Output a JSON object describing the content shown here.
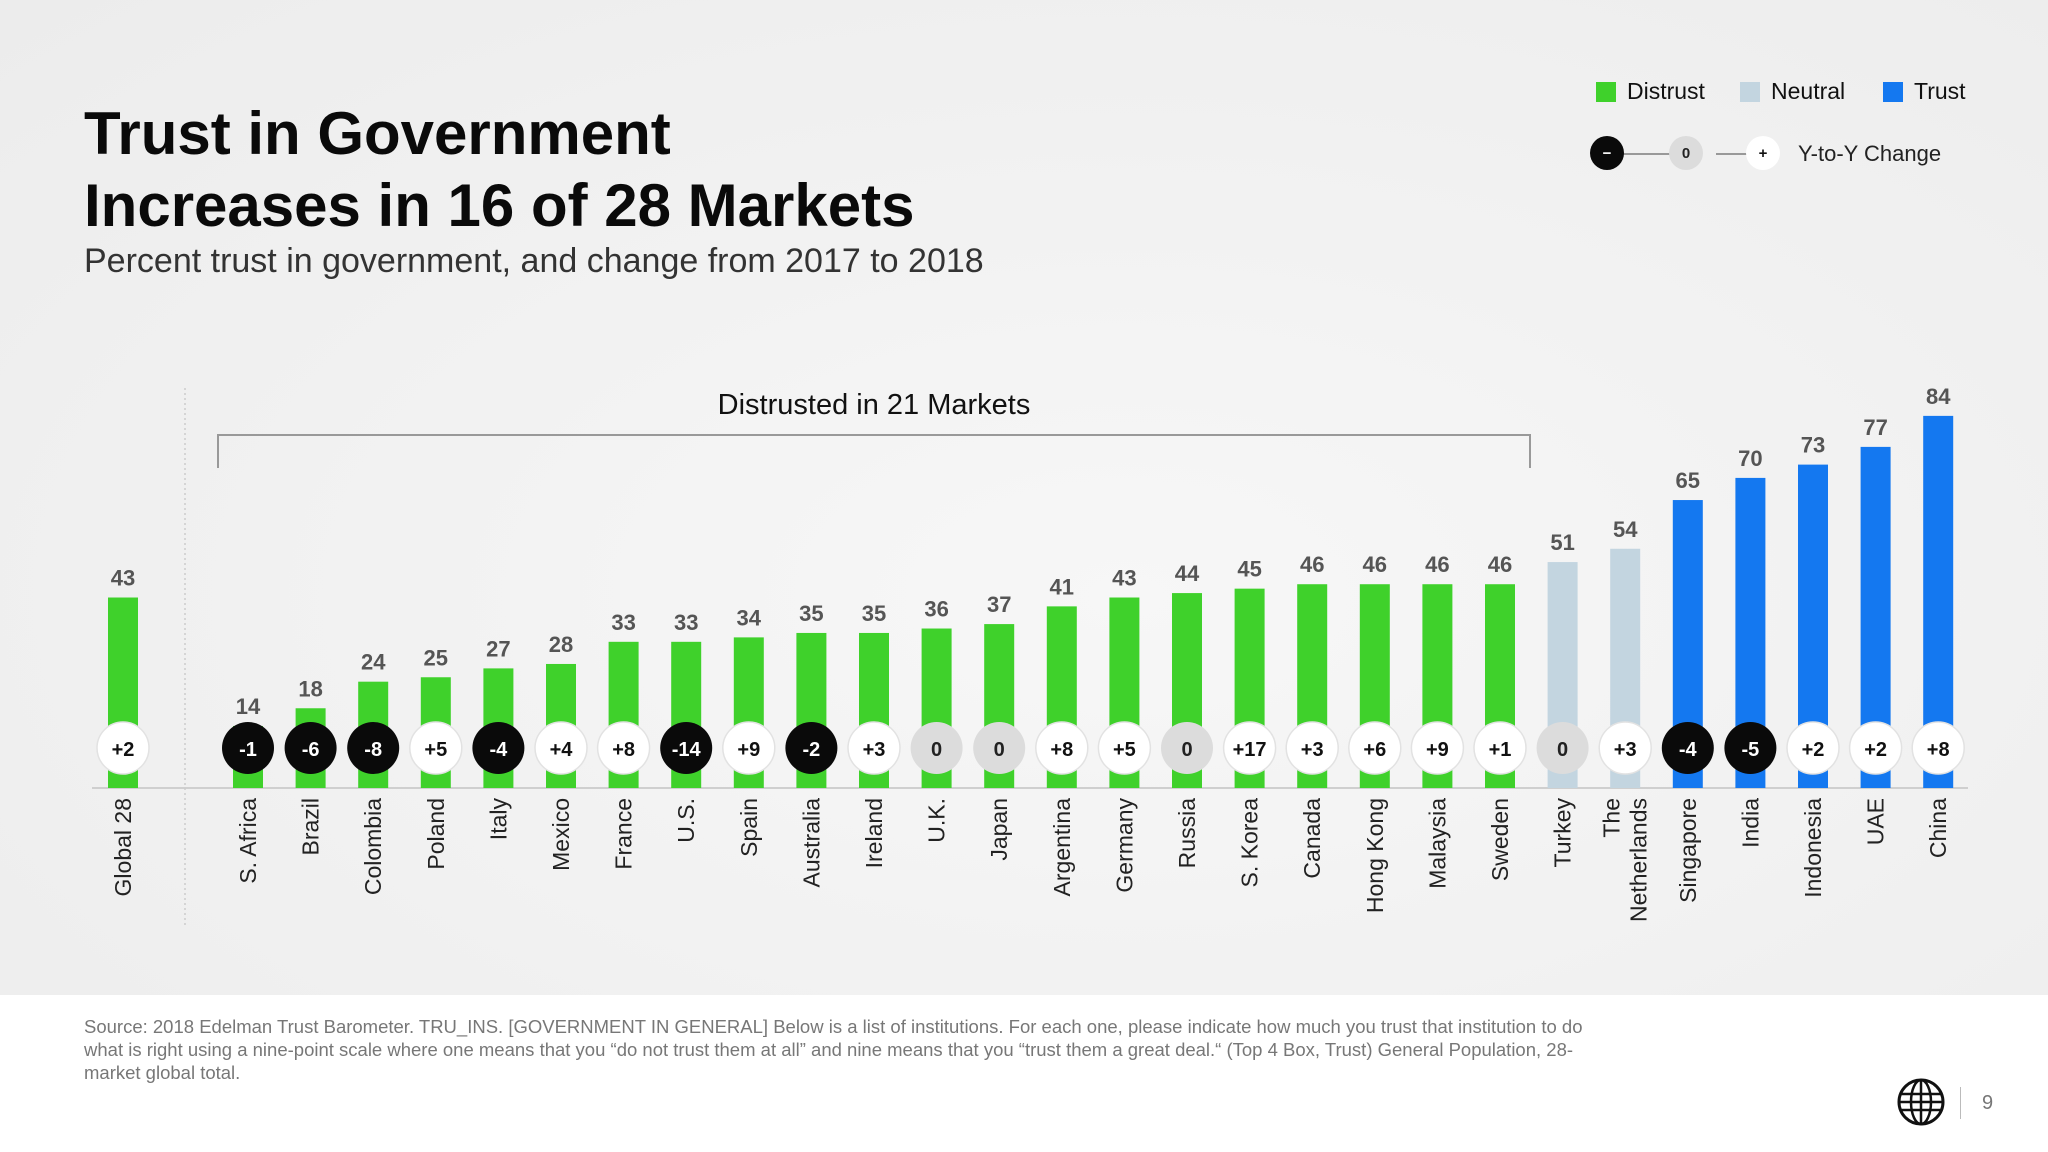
{
  "title_lines": [
    "Trust in Government",
    "Increases in 16 of 28 Markets"
  ],
  "subtitle": "Percent trust in government, and change from 2017 to 2018",
  "legend": {
    "items": [
      {
        "label": "Distrust",
        "color": "#3fd12b"
      },
      {
        "label": "Neutral",
        "color": "#c3d5e0"
      },
      {
        "label": "Trust",
        "color": "#1478f0"
      }
    ],
    "yoy": {
      "minus": "−",
      "zero": "0",
      "plus": "+",
      "label": "Y-to-Y Change"
    }
  },
  "chart_data": {
    "type": "bar",
    "title": "Trust in Government Increases in 16 of 28 Markets",
    "subtitle": "Percent trust in government, and change from 2017 to 2018",
    "ylim": [
      0,
      100
    ],
    "categories": [
      "Global 28",
      "S. Africa",
      "Brazil",
      "Colombia",
      "Poland",
      "Italy",
      "Mexico",
      "France",
      "U.S.",
      "Spain",
      "Australia",
      "Ireland",
      "U.K.",
      "Japan",
      "Argentina",
      "Germany",
      "Russia",
      "S. Korea",
      "Canada",
      "Hong Kong",
      "Malaysia",
      "Sweden",
      "Turkey",
      "The Netherlands",
      "Singapore",
      "India",
      "Indonesia",
      "UAE",
      "China"
    ],
    "values": [
      43,
      14,
      18,
      24,
      25,
      27,
      28,
      33,
      33,
      34,
      35,
      35,
      36,
      37,
      41,
      43,
      44,
      45,
      46,
      46,
      46,
      46,
      51,
      54,
      65,
      70,
      73,
      77,
      84
    ],
    "changes": [
      "+2",
      "-1",
      "-6",
      "-8",
      "+5",
      "-4",
      "+4",
      "+8",
      "-14",
      "+9",
      "-2",
      "+3",
      "0",
      "0",
      "+8",
      "+5",
      "0",
      "+17",
      "+3",
      "+6",
      "+9",
      "+1",
      "0",
      "+3",
      "-4",
      "-5",
      "+2",
      "+2",
      "+8"
    ],
    "levels": [
      "Distrust",
      "Distrust",
      "Distrust",
      "Distrust",
      "Distrust",
      "Distrust",
      "Distrust",
      "Distrust",
      "Distrust",
      "Distrust",
      "Distrust",
      "Distrust",
      "Distrust",
      "Distrust",
      "Distrust",
      "Distrust",
      "Distrust",
      "Distrust",
      "Distrust",
      "Distrust",
      "Distrust",
      "Distrust",
      "Neutral",
      "Neutral",
      "Trust",
      "Trust",
      "Trust",
      "Trust",
      "Trust"
    ],
    "colors": {
      "Distrust": "#3fd12b",
      "Neutral": "#c3d5e0",
      "Trust": "#1478f0"
    },
    "badge_colors": {
      "negative": "#0a0a0a",
      "zero": "#dcdcdc",
      "positive": "#ffffff"
    },
    "annotation": "Distrusted in 21 Markets"
  },
  "source": "Source: 2018 Edelman Trust Barometer. TRU_INS. [GOVERNMENT IN GENERAL] Below is a list of institutions. For each one, please indicate how much you trust that institution to do what is right using a nine-point scale where one means that you “do not trust them at all” and nine means that you “trust them a great deal.“ (Top 4 Box, Trust) General Population, 28-market global total.",
  "page_number": "9"
}
